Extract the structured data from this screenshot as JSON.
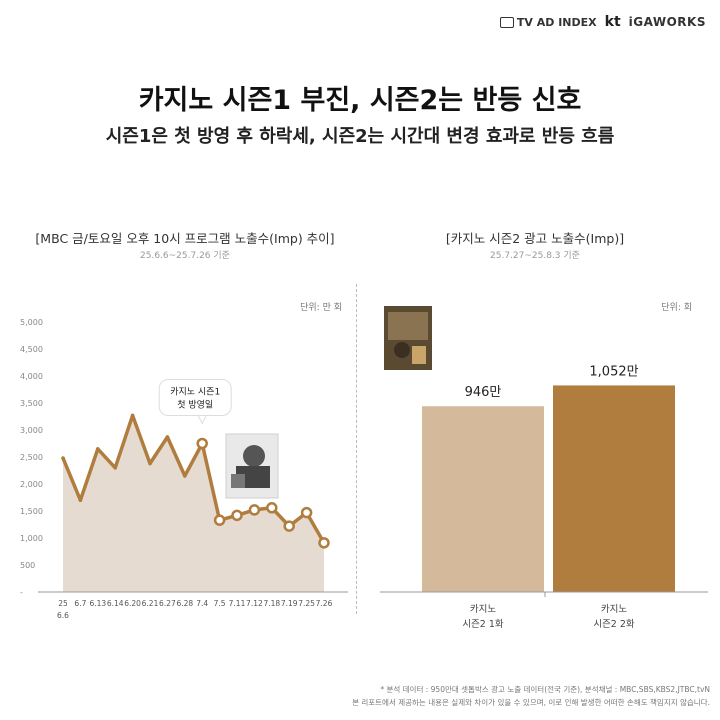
{
  "brand": {
    "tvadindex": "TV AD INDEX",
    "kt": "kt",
    "igaworks": "iGAWORKS"
  },
  "header": {
    "title": "카지노 시즌1 부진, 시즌2는 반등 신호",
    "subtitle": "시즌1은 첫 방영 후 하락세, 시즌2는 시간대 변경 효과로 반등 흐름"
  },
  "chart_data": [
    {
      "type": "area",
      "title": "[MBC 금/토요일 오후 10시 프로그램 노출수(Imp) 추이]",
      "period": "25.6.6~25.7.26 기준",
      "unit": "단위: 만 회",
      "x": [
        "25 6.6",
        "6.7",
        "6.13",
        "6.14",
        "6.20",
        "6.21",
        "6.27",
        "6.28",
        "7.4",
        "7.5",
        "7.11",
        "7.12",
        "7.18",
        "7.19",
        "7.25",
        "7.26"
      ],
      "x_tick_labels": [
        "25",
        "6.7",
        "6.13",
        "6.14",
        "6.20",
        "6.21",
        "6.27",
        "6.28",
        "7.4",
        "7.5",
        "7.11",
        "7.12",
        "7.18",
        "7.19",
        "7.25",
        "7.26"
      ],
      "x_first_label_second_line": "6.6",
      "y_ticks": [
        "-",
        "500",
        "1,000",
        "1,500",
        "2,000",
        "2,500",
        "3,000",
        "3,500",
        "4,000",
        "4,500",
        "5,000"
      ],
      "ylim": [
        0,
        5000
      ],
      "series": [
        {
          "values": [
            2480,
            1700,
            2650,
            2300,
            3270,
            2380,
            2870,
            2150,
            2750,
            1330,
            1420,
            1520,
            1560,
            1220,
            1470,
            910
          ]
        }
      ],
      "colors": {
        "line": "#b07d3f",
        "fill": "#e6dbd0"
      },
      "annotation": {
        "lines": [
          "카지노 시즌1",
          "첫 방영일"
        ],
        "x": "7.4"
      }
    },
    {
      "type": "bar",
      "title": "[카지노 시즌2 광고 노출수(Imp)]",
      "period": "25.7.27~25.8.3 기준",
      "unit": "단위: 회",
      "categories": [
        [
          "카지노",
          "시즌2 1화"
        ],
        [
          "카지노",
          "시즌2 2화"
        ]
      ],
      "values": [
        946,
        1052
      ],
      "data_labels": [
        "946만",
        "1,052만"
      ],
      "ylim": [
        0,
        1100
      ],
      "colors": [
        "#d4b99a",
        "#b07d3f"
      ]
    }
  ],
  "footnote": {
    "line1": "* 분석 데이터 : 950만대 셋톱박스 광고 노출 데이터(전국 기준), 분석채널 : MBC,SBS,KBS2,JTBC,tvN",
    "line2": "본 리포트에서 제공하는 내용은 실제와 차이가 있을 수 있으며, 이로 인해 발생한 어떠한 손해도 책임지지 않습니다."
  }
}
